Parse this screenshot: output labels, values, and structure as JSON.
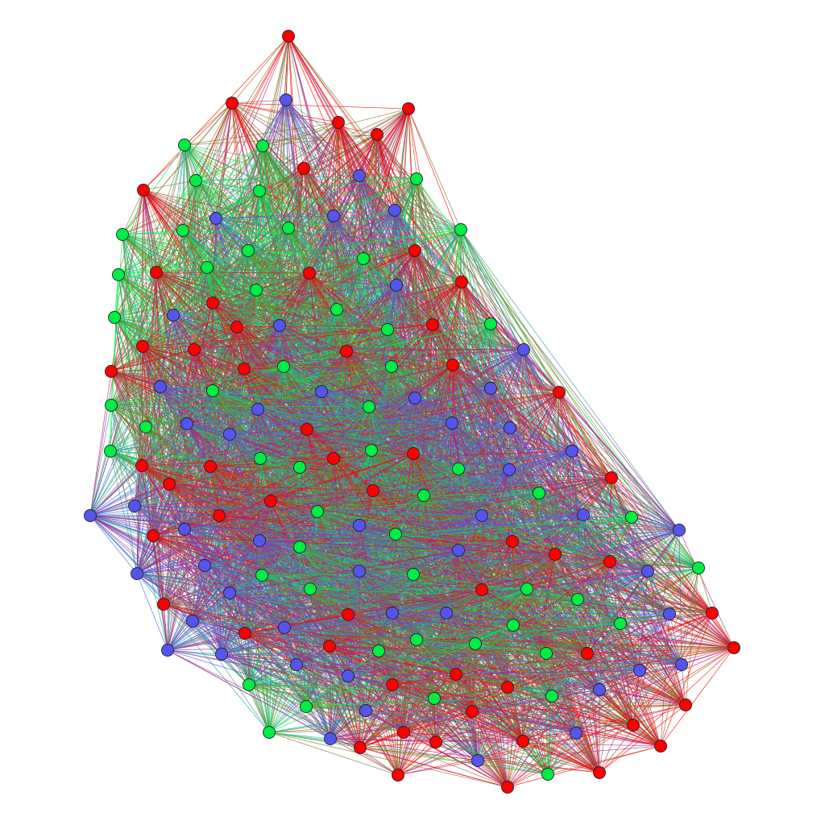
{
  "palette": {
    "red": "#ff0000",
    "green": "#00ee44",
    "blue": "#5555ee",
    "node_stroke": "#222222",
    "background": "#ffffff"
  }
}
